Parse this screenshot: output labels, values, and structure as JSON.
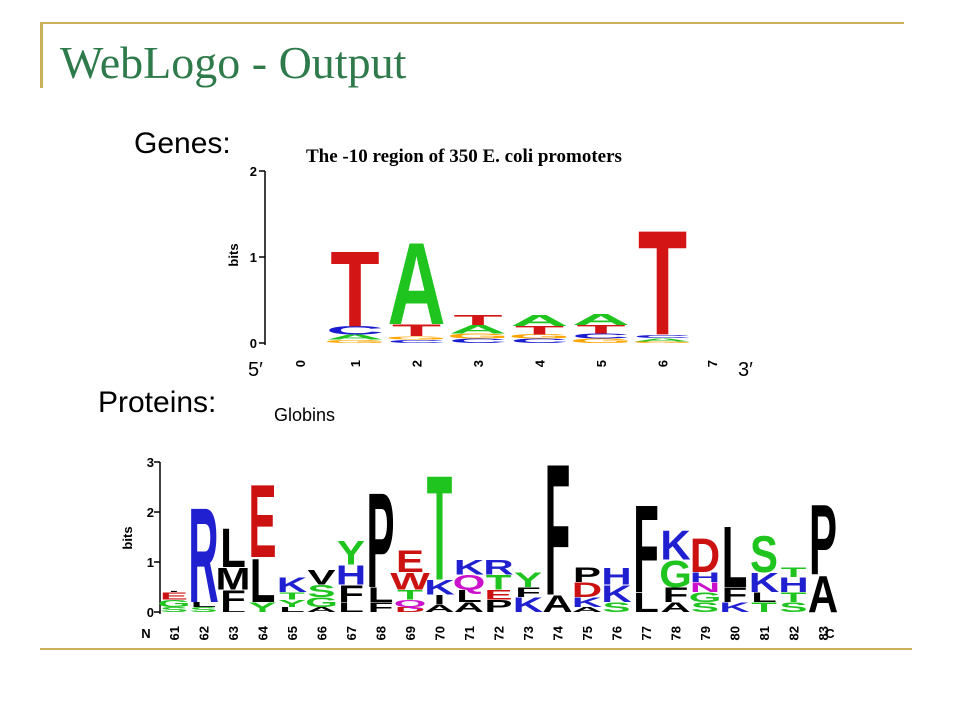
{
  "slide": {
    "title": "WebLogo - Output",
    "genes_label": "Genes:",
    "proteins_label": "Proteins:",
    "accent_color": "#c9b25a",
    "title_color": "#2f7a4a"
  },
  "chart_data": [
    {
      "type": "sequence-logo",
      "title": "The -10 region of 350 E. coli promoters",
      "ylabel": "bits",
      "ylim": [
        0,
        2
      ],
      "yticks": [
        "0",
        "1",
        "2"
      ],
      "x_start_label": "0",
      "x_end_label": "7",
      "left_end_label": "5′",
      "right_end_label": "3′",
      "colors": {
        "A": "#1fc41f",
        "T": "#d41515",
        "C": "#1a1ad0",
        "G": "#ffa500"
      },
      "positions": [
        {
          "pos": "1",
          "stack": [
            {
              "l": "G",
              "h": 0.04
            },
            {
              "l": "A",
              "h": 0.06
            },
            {
              "l": "C",
              "h": 0.1
            },
            {
              "l": "T",
              "h": 0.9
            }
          ]
        },
        {
          "pos": "2",
          "stack": [
            {
              "l": "C",
              "h": 0.04
            },
            {
              "l": "G",
              "h": 0.04
            },
            {
              "l": "T",
              "h": 0.14
            },
            {
              "l": "A",
              "h": 0.98
            }
          ]
        },
        {
          "pos": "3",
          "stack": [
            {
              "l": "C",
              "h": 0.05
            },
            {
              "l": "G",
              "h": 0.06
            },
            {
              "l": "A",
              "h": 0.1
            },
            {
              "l": "T",
              "h": 0.12
            }
          ]
        },
        {
          "pos": "4",
          "stack": [
            {
              "l": "C",
              "h": 0.05
            },
            {
              "l": "G",
              "h": 0.05
            },
            {
              "l": "T",
              "h": 0.1
            },
            {
              "l": "A",
              "h": 0.13
            }
          ]
        },
        {
          "pos": "5",
          "stack": [
            {
              "l": "G",
              "h": 0.05
            },
            {
              "l": "C",
              "h": 0.06
            },
            {
              "l": "T",
              "h": 0.1
            },
            {
              "l": "A",
              "h": 0.13
            }
          ]
        },
        {
          "pos": "6",
          "stack": [
            {
              "l": "G",
              "h": 0.02
            },
            {
              "l": "A",
              "h": 0.04
            },
            {
              "l": "C",
              "h": 0.04
            },
            {
              "l": "T",
              "h": 1.25
            }
          ]
        }
      ]
    },
    {
      "type": "sequence-logo",
      "title": "Globins",
      "ylabel": "bits",
      "ylim": [
        0,
        3
      ],
      "yticks": [
        "0",
        "1",
        "2",
        "3"
      ],
      "x_start_label": "N",
      "x_end_label": "C",
      "colors": {
        "A": "#000000",
        "F": "#000000",
        "I": "#000000",
        "L": "#000000",
        "M": "#000000",
        "P": "#000000",
        "V": "#000000",
        "W": "#cc1111",
        "G": "#1fc41f",
        "S": "#1fc41f",
        "T": "#1fc41f",
        "Y": "#1fc41f",
        "C": "#1fc41f",
        "K": "#2020d0",
        "R": "#2020d0",
        "H": "#2020d0",
        "D": "#cc1111",
        "E": "#cc1111",
        "N": "#cc11cc",
        "Q": "#cc11cc"
      },
      "positions": [
        {
          "pos": "61",
          "stack": [
            {
              "l": "S",
              "h": 0.1
            },
            {
              "l": "G",
              "h": 0.15
            },
            {
              "l": "E",
              "h": 0.15
            },
            {
              "l": ".",
              "h": 0.1
            }
          ]
        },
        {
          "pos": "62",
          "stack": [
            {
              "l": "S",
              "h": 0.1
            },
            {
              "l": "L",
              "h": 0.1
            },
            {
              "l": "R",
              "h": 1.95
            }
          ]
        },
        {
          "pos": "63",
          "stack": [
            {
              "l": "L",
              "h": 0.1
            },
            {
              "l": "F",
              "h": 0.35
            },
            {
              "l": "M",
              "h": 0.45
            },
            {
              "l": "L",
              "h": 0.8
            }
          ]
        },
        {
          "pos": "64",
          "stack": [
            {
              "l": "Y",
              "h": 0.2
            },
            {
              "l": "L",
              "h": 0.9
            },
            {
              "l": "E",
              "h": 1.5
            }
          ]
        },
        {
          "pos": "65",
          "stack": [
            {
              "l": "L",
              "h": 0.1
            },
            {
              "l": "Y",
              "h": 0.15
            },
            {
              "l": "T",
              "h": 0.15
            },
            {
              "l": "K",
              "h": 0.3
            }
          ]
        },
        {
          "pos": "66",
          "stack": [
            {
              "l": "A",
              "h": 0.1
            },
            {
              "l": "G",
              "h": 0.2
            },
            {
              "l": "S",
              "h": 0.25
            },
            {
              "l": "V",
              "h": 0.3
            }
          ]
        },
        {
          "pos": "67",
          "stack": [
            {
              "l": "L",
              "h": 0.2
            },
            {
              "l": "F",
              "h": 0.35
            },
            {
              "l": "H",
              "h": 0.4
            },
            {
              "l": "Y",
              "h": 0.5
            }
          ]
        },
        {
          "pos": "68",
          "stack": [
            {
              "l": "F",
              "h": 0.2
            },
            {
              "l": "L",
              "h": 0.3
            },
            {
              "l": "P",
              "h": 1.95
            }
          ]
        },
        {
          "pos": "69",
          "stack": [
            {
              "l": "D",
              "h": 0.1
            },
            {
              "l": "Q",
              "h": 0.15
            },
            {
              "l": "T",
              "h": 0.2
            },
            {
              "l": "W",
              "h": 0.35
            },
            {
              "l": "E",
              "h": 0.45
            }
          ]
        },
        {
          "pos": "70",
          "stack": [
            {
              "l": "A",
              "h": 0.15
            },
            {
              "l": "I",
              "h": 0.2
            },
            {
              "l": "K",
              "h": 0.3
            },
            {
              "l": "T",
              "h": 2.15
            }
          ]
        },
        {
          "pos": "71",
          "stack": [
            {
              "l": "A",
              "h": 0.2
            },
            {
              "l": "L",
              "h": 0.25
            },
            {
              "l": "Q",
              "h": 0.3
            },
            {
              "l": "K",
              "h": 0.3
            }
          ]
        },
        {
          "pos": "72",
          "stack": [
            {
              "l": "P",
              "h": 0.25
            },
            {
              "l": "E",
              "h": 0.2
            },
            {
              "l": "T",
              "h": 0.3
            },
            {
              "l": "R",
              "h": 0.3
            }
          ]
        },
        {
          "pos": "73",
          "stack": [
            {
              "l": "K",
              "h": 0.3
            },
            {
              "l": "F",
              "h": 0.2
            },
            {
              "l": "Y",
              "h": 0.3
            }
          ]
        },
        {
          "pos": "74",
          "stack": [
            {
              "l": "A",
              "h": 0.35
            },
            {
              "l": "F",
              "h": 2.7
            }
          ]
        },
        {
          "pos": "75",
          "stack": [
            {
              "l": "A",
              "h": 0.1
            },
            {
              "l": "K",
              "h": 0.2
            },
            {
              "l": "D",
              "h": 0.3
            },
            {
              "l": "P",
              "h": 0.3
            }
          ]
        },
        {
          "pos": "76",
          "stack": [
            {
              "l": "S",
              "h": 0.2
            },
            {
              "l": "K",
              "h": 0.35
            },
            {
              "l": "H",
              "h": 0.35
            }
          ]
        },
        {
          "pos": "77",
          "stack": [
            {
              "l": "L",
              "h": 0.4
            },
            {
              "l": "F",
              "h": 1.8
            }
          ]
        },
        {
          "pos": "78",
          "stack": [
            {
              "l": "A",
              "h": 0.2
            },
            {
              "l": "F",
              "h": 0.3
            },
            {
              "l": "G",
              "h": 0.55
            },
            {
              "l": "K",
              "h": 0.6
            }
          ]
        },
        {
          "pos": "79",
          "stack": [
            {
              "l": "S",
              "h": 0.2
            },
            {
              "l": "G",
              "h": 0.2
            },
            {
              "l": "N",
              "h": 0.2
            },
            {
              "l": "H",
              "h": 0.2
            },
            {
              "l": "D",
              "h": 0.7
            }
          ]
        },
        {
          "pos": "80",
          "stack": [
            {
              "l": "K",
              "h": 0.2
            },
            {
              "l": "F",
              "h": 0.3
            },
            {
              "l": "L",
              "h": 1.25
            }
          ]
        },
        {
          "pos": "81",
          "stack": [
            {
              "l": "T",
              "h": 0.2
            },
            {
              "l": "L",
              "h": 0.2
            },
            {
              "l": "K",
              "h": 0.4
            },
            {
              "l": "S",
              "h": 0.75
            }
          ]
        },
        {
          "pos": "82",
          "stack": [
            {
              "l": "S",
              "h": 0.2
            },
            {
              "l": "T",
              "h": 0.2
            },
            {
              "l": "H",
              "h": 0.3
            },
            {
              "l": "T",
              "h": 0.2
            }
          ]
        },
        {
          "pos": "83",
          "stack": [
            {
              "l": "A",
              "h": 0.75
            },
            {
              "l": "P",
              "h": 1.45
            }
          ]
        }
      ]
    }
  ]
}
